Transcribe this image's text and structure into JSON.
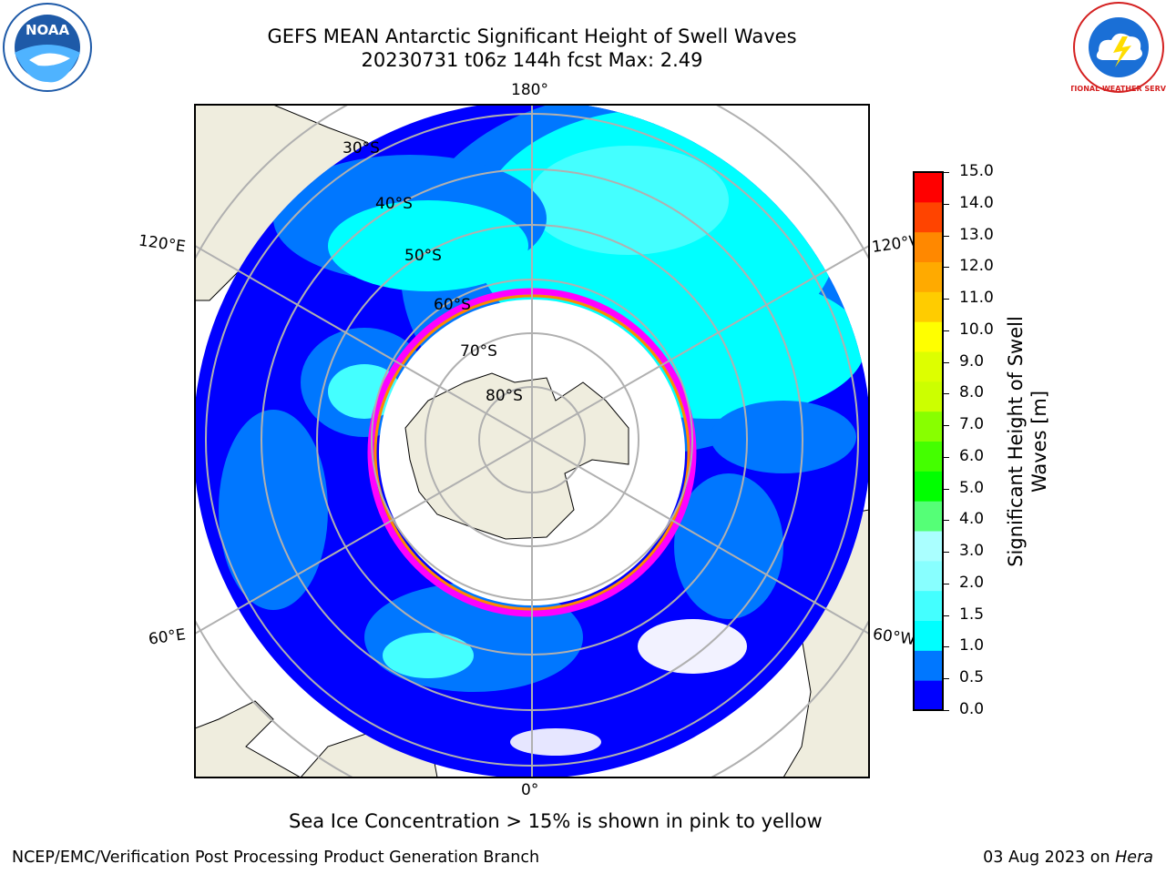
{
  "header": {
    "title_line1": "GEFS MEAN Antarctic Significant Height of Swell Waves",
    "title_line2": "20230731 t06z 144h fcst   Max: 2.49",
    "left_logo": "NOAA",
    "right_logo": "NATIONAL WEATHER SERVICE"
  },
  "map": {
    "projection": "south-polar-stereographic",
    "lon_labels": {
      "top": "180°",
      "bottom": "0°",
      "left_upper": "120°E",
      "left_lower": "60°E",
      "right_upper": "120°W",
      "right_lower": "60°W"
    },
    "lat_labels": [
      "30°S",
      "40°S",
      "50°S",
      "60°S",
      "70°S",
      "80°S"
    ],
    "ocean_color": "#0000ff",
    "land_color": "#efedde",
    "ice_edge_colors": [
      "#ff00ff",
      "#ff8800",
      "#ffcc00"
    ]
  },
  "colorbar": {
    "label_line1": "Significant Height of Swell",
    "label_line2": "Waves [m]",
    "ticks": [
      "15.0",
      "14.0",
      "13.0",
      "12.0",
      "11.0",
      "10.0",
      "9.0",
      "8.0",
      "7.0",
      "6.0",
      "5.0",
      "4.0",
      "3.0",
      "2.0",
      "1.5",
      "1.0",
      "0.5",
      "0.0"
    ],
    "colors_bottom_to_top": [
      "#0000ff",
      "#0077ff",
      "#00ffff",
      "#44ffff",
      "#88ffff",
      "#aaffff",
      "#55ff77",
      "#00ff00",
      "#44ff00",
      "#88ff00",
      "#ccff00",
      "#ddff00",
      "#ffff00",
      "#ffcc00",
      "#ffaa00",
      "#ff8800",
      "#ff4400",
      "#ff0000"
    ]
  },
  "notes": {
    "ice_note": "Sea Ice Concentration > 15% is shown in pink to yellow"
  },
  "footer": {
    "left": "NCEP/EMC/Verification Post Processing Product Generation Branch",
    "right_prefix": "03 Aug 2023 on ",
    "right_host": "Hera"
  }
}
